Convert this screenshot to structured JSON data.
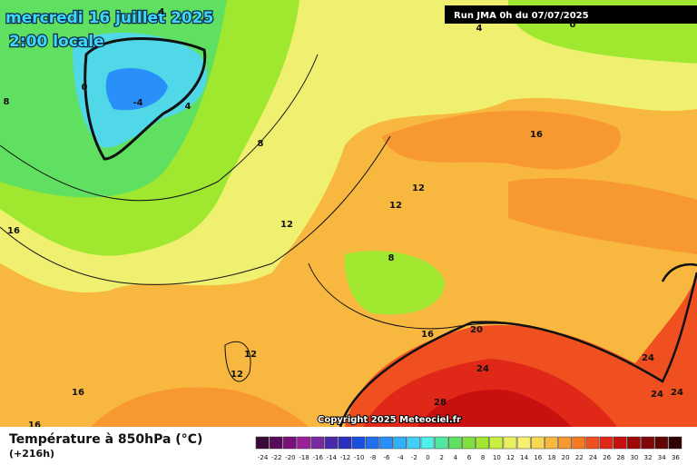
{
  "header": {
    "title": "mercredi 16 juillet 2025",
    "time": "2:00 locale",
    "run": "Run JMA 0h du 07/07/2025"
  },
  "contour_labels": [
    "4",
    "0",
    "-4",
    "4",
    "8",
    "8",
    "12",
    "12",
    "16",
    "16",
    "12",
    "8",
    "16",
    "20",
    "24",
    "24",
    "24",
    "24",
    "28",
    "12",
    "12",
    "16",
    "16",
    "4",
    "0"
  ],
  "copyright": "Copyright 2025 Meteociel.fr",
  "legend": {
    "title": "Température à 850hPa (°C)",
    "subtitle": "(+216h)",
    "ticks": [
      -24,
      -22,
      -20,
      -18,
      -16,
      -14,
      -12,
      -10,
      -8,
      -6,
      -4,
      -2,
      0,
      2,
      4,
      6,
      8,
      10,
      12,
      14,
      16,
      18,
      20,
      22,
      24,
      26,
      28,
      30,
      32,
      34,
      36
    ],
    "colors": [
      "#3a0a3a",
      "#5a0a5a",
      "#7a107a",
      "#9a209a",
      "#7a2aa0",
      "#4a2aa8",
      "#2a30c0",
      "#1a50e0",
      "#2070f0",
      "#2890f8",
      "#30b0f8",
      "#40d0f8",
      "#50f0e8",
      "#50e8a0",
      "#60e060",
      "#80e040",
      "#a0e830",
      "#c8f040",
      "#e8f060",
      "#f8f070",
      "#f8d850",
      "#f8b840",
      "#f89830",
      "#f87820",
      "#f05020",
      "#e02818",
      "#c81010",
      "#a00808",
      "#800808",
      "#600404",
      "#300202"
    ]
  }
}
